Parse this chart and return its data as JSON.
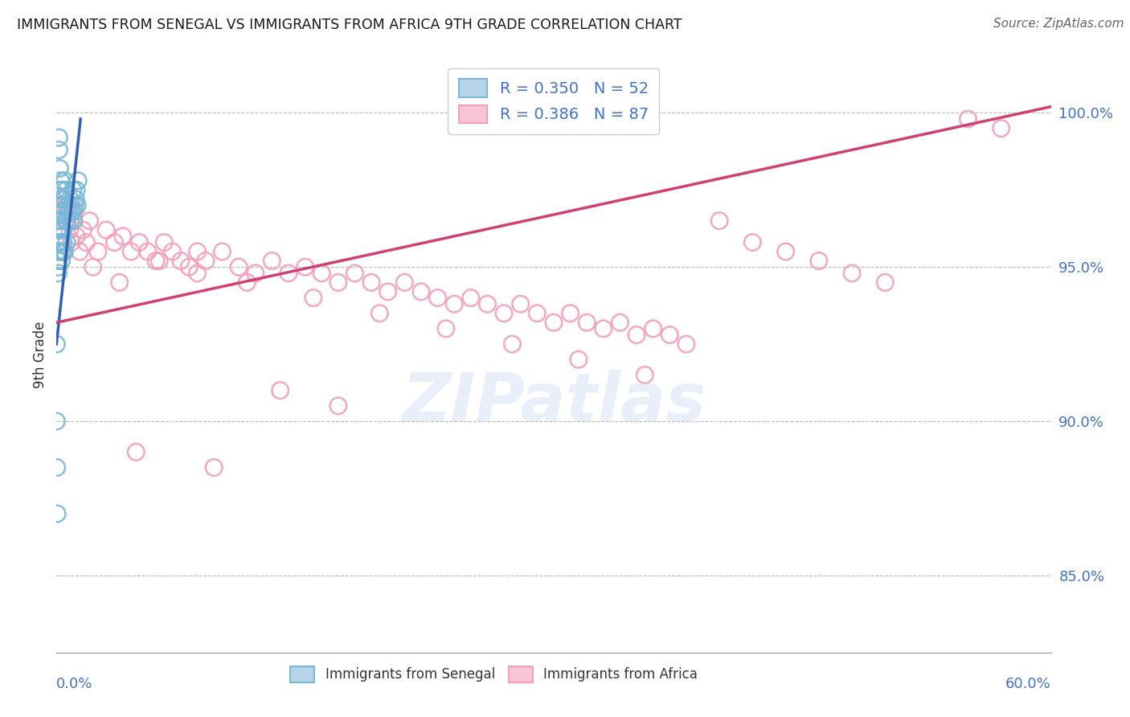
{
  "title": "IMMIGRANTS FROM SENEGAL VS IMMIGRANTS FROM AFRICA 9TH GRADE CORRELATION CHART",
  "source": "Source: ZipAtlas.com",
  "ylabel": "9th Grade",
  "ylabel_tick_vals": [
    85.0,
    90.0,
    95.0,
    100.0
  ],
  "xlim": [
    0.0,
    60.0
  ],
  "ylim": [
    82.5,
    101.8
  ],
  "R_blue": 0.35,
  "N_blue": 52,
  "R_pink": 0.386,
  "N_pink": 87,
  "blue_color": "#7ab8d9",
  "pink_color": "#f4a0b8",
  "blue_line_color": "#3060b0",
  "pink_line_color": "#d04070",
  "blue_trend_x": [
    0.0,
    1.45
  ],
  "blue_trend_y": [
    92.5,
    99.8
  ],
  "pink_trend_x": [
    0.0,
    60.0
  ],
  "pink_trend_y": [
    93.2,
    100.2
  ],
  "blue_x": [
    0.05,
    0.05,
    0.08,
    0.08,
    0.1,
    0.1,
    0.1,
    0.12,
    0.12,
    0.15,
    0.15,
    0.18,
    0.18,
    0.2,
    0.2,
    0.22,
    0.25,
    0.25,
    0.28,
    0.3,
    0.3,
    0.32,
    0.35,
    0.35,
    0.38,
    0.4,
    0.4,
    0.42,
    0.45,
    0.5,
    0.5,
    0.55,
    0.6,
    0.62,
    0.65,
    0.7,
    0.75,
    0.8,
    0.85,
    0.9,
    0.95,
    1.0,
    1.05,
    1.1,
    1.15,
    1.2,
    1.25,
    1.3,
    0.0,
    0.0,
    0.02,
    0.04
  ],
  "blue_y": [
    96.2,
    95.5,
    97.0,
    95.8,
    96.5,
    95.2,
    94.8,
    96.8,
    95.0,
    99.2,
    98.8,
    97.5,
    96.0,
    98.2,
    95.5,
    96.2,
    97.8,
    95.8,
    96.5,
    97.2,
    95.2,
    96.0,
    97.5,
    95.5,
    96.8,
    97.0,
    95.8,
    96.2,
    97.2,
    97.8,
    95.5,
    96.5,
    97.5,
    95.8,
    96.5,
    97.0,
    96.8,
    97.2,
    96.5,
    97.0,
    96.8,
    97.5,
    96.5,
    97.0,
    97.2,
    97.5,
    97.0,
    97.8,
    92.5,
    90.0,
    88.5,
    87.0
  ],
  "pink_x": [
    0.1,
    0.15,
    0.2,
    0.25,
    0.3,
    0.35,
    0.4,
    0.45,
    0.5,
    0.6,
    0.7,
    0.8,
    0.9,
    1.0,
    1.2,
    1.4,
    1.6,
    1.8,
    2.0,
    2.5,
    3.0,
    3.5,
    4.0,
    4.5,
    5.0,
    5.5,
    6.0,
    6.5,
    7.0,
    7.5,
    8.0,
    8.5,
    9.0,
    10.0,
    11.0,
    12.0,
    13.0,
    14.0,
    15.0,
    16.0,
    17.0,
    18.0,
    19.0,
    20.0,
    21.0,
    22.0,
    23.0,
    24.0,
    25.0,
    26.0,
    27.0,
    28.0,
    29.0,
    30.0,
    31.0,
    32.0,
    33.0,
    34.0,
    35.0,
    36.0,
    37.0,
    38.0,
    40.0,
    42.0,
    44.0,
    46.0,
    48.0,
    50.0,
    55.0,
    57.0,
    2.2,
    3.8,
    6.2,
    8.5,
    11.5,
    15.5,
    19.5,
    23.5,
    27.5,
    31.5,
    35.5,
    0.55,
    1.1,
    4.8,
    9.5,
    13.5,
    17.0
  ],
  "pink_y": [
    96.8,
    97.2,
    95.8,
    96.5,
    97.0,
    96.2,
    95.5,
    96.8,
    97.2,
    96.5,
    97.0,
    96.2,
    95.8,
    96.5,
    96.0,
    95.5,
    96.2,
    95.8,
    96.5,
    95.5,
    96.2,
    95.8,
    96.0,
    95.5,
    95.8,
    95.5,
    95.2,
    95.8,
    95.5,
    95.2,
    95.0,
    95.5,
    95.2,
    95.5,
    95.0,
    94.8,
    95.2,
    94.8,
    95.0,
    94.8,
    94.5,
    94.8,
    94.5,
    94.2,
    94.5,
    94.2,
    94.0,
    93.8,
    94.0,
    93.8,
    93.5,
    93.8,
    93.5,
    93.2,
    93.5,
    93.2,
    93.0,
    93.2,
    92.8,
    93.0,
    92.8,
    92.5,
    96.5,
    95.8,
    95.5,
    95.2,
    94.8,
    94.5,
    99.8,
    99.5,
    95.0,
    94.5,
    95.2,
    94.8,
    94.5,
    94.0,
    93.5,
    93.0,
    92.5,
    92.0,
    91.5,
    97.0,
    96.8,
    89.0,
    88.5,
    91.0,
    90.5
  ]
}
